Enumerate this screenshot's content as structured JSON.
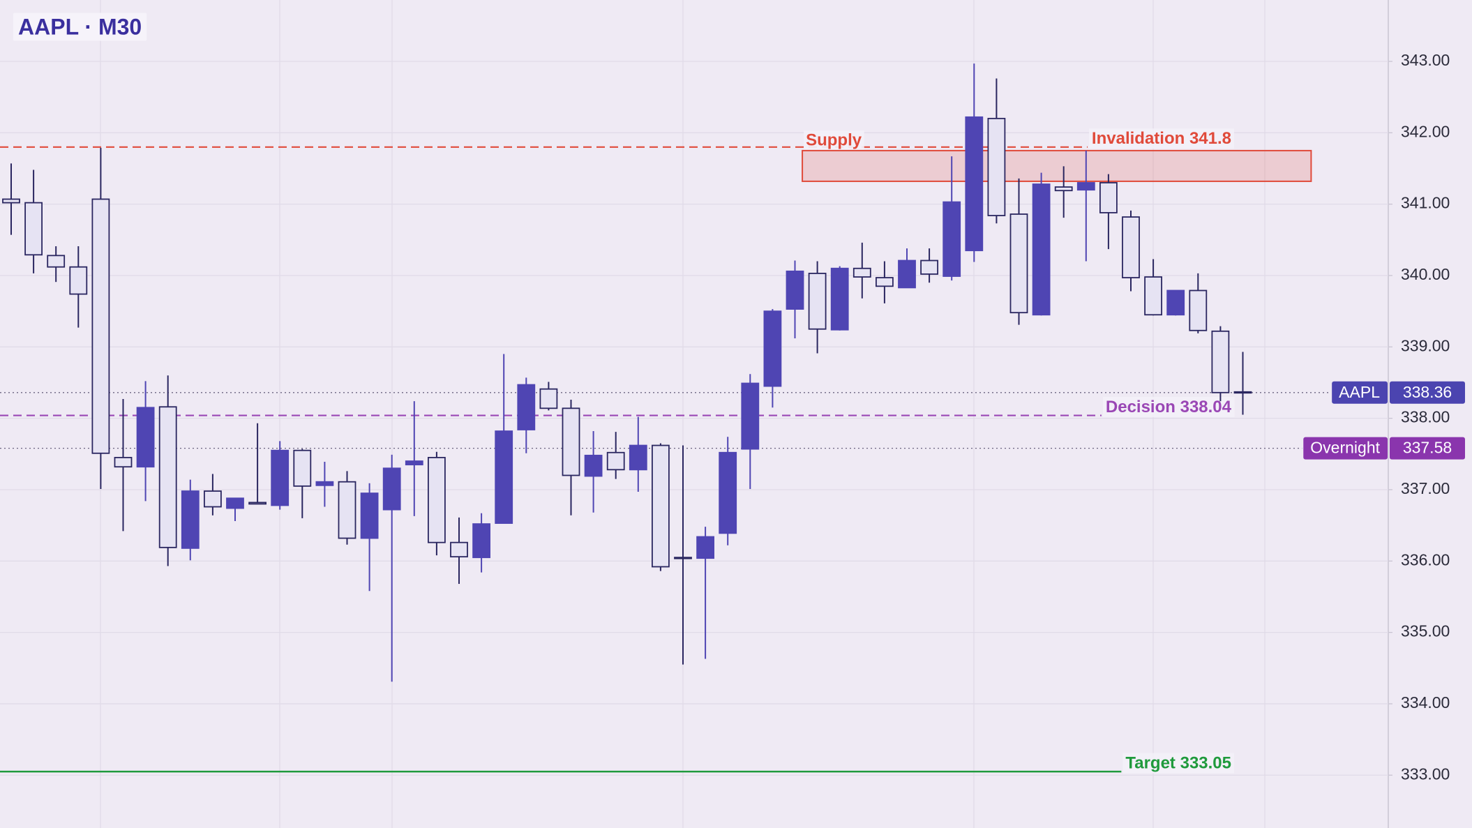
{
  "chart_data": {
    "type": "candlestick",
    "title": "AAPL · M30",
    "open": [
      341.07,
      341.02,
      340.28,
      340.12,
      341.07,
      337.45,
      337.32,
      338.16,
      336.18,
      336.98,
      336.74,
      336.82,
      336.78,
      337.55,
      337.06,
      337.11,
      336.32,
      336.72,
      337.35,
      337.45,
      336.26,
      336.05,
      336.53,
      337.84,
      338.41,
      338.14,
      337.19,
      337.52,
      337.28,
      337.62,
      336.05,
      336.04,
      336.39,
      337.57,
      338.45,
      339.53,
      340.03,
      339.24,
      340.1,
      339.97,
      339.83,
      340.21,
      339.99,
      340.35,
      342.2,
      340.86,
      339.45,
      341.24,
      341.2,
      341.3,
      340.82,
      339.98,
      339.45,
      339.79,
      339.22,
      338.37
    ],
    "high": [
      341.57,
      341.48,
      340.41,
      340.41,
      341.79,
      338.27,
      338.52,
      338.6,
      337.14,
      337.22,
      336.88,
      337.93,
      337.68,
      337.57,
      337.39,
      337.26,
      337.09,
      337.49,
      338.24,
      337.53,
      336.61,
      336.67,
      338.9,
      338.57,
      338.51,
      338.26,
      337.82,
      337.81,
      338.02,
      337.65,
      337.62,
      336.48,
      337.74,
      338.62,
      339.53,
      340.21,
      340.2,
      340.13,
      340.46,
      340.2,
      340.38,
      340.38,
      341.67,
      342.97,
      342.76,
      341.36,
      341.44,
      341.53,
      341.75,
      341.42,
      340.91,
      340.23,
      339.79,
      340.03,
      339.29,
      338.93
    ],
    "low": [
      340.57,
      340.03,
      339.91,
      339.27,
      337.01,
      336.42,
      336.84,
      335.93,
      336.01,
      336.64,
      336.56,
      336.8,
      336.72,
      336.6,
      336.76,
      336.23,
      335.58,
      334.31,
      336.63,
      336.08,
      335.68,
      335.84,
      336.53,
      337.51,
      338.11,
      336.64,
      336.68,
      337.15,
      336.97,
      335.86,
      334.55,
      334.63,
      336.22,
      337.01,
      338.15,
      339.12,
      338.91,
      339.23,
      339.68,
      339.61,
      339.83,
      339.9,
      339.93,
      340.19,
      340.73,
      339.31,
      339.44,
      340.81,
      340.2,
      340.37,
      339.78,
      339.44,
      339.44,
      339.19,
      338.24,
      338.05
    ],
    "close": [
      341.02,
      340.29,
      340.12,
      339.74,
      337.51,
      337.32,
      338.15,
      336.19,
      336.98,
      336.76,
      336.88,
      336.8,
      337.55,
      337.05,
      337.11,
      336.32,
      336.95,
      337.3,
      337.4,
      336.26,
      336.06,
      336.52,
      337.82,
      338.47,
      338.14,
      337.2,
      337.48,
      337.28,
      337.62,
      335.92,
      336.04,
      336.34,
      337.52,
      338.49,
      339.5,
      340.06,
      339.25,
      340.1,
      339.98,
      339.85,
      340.21,
      340.02,
      341.03,
      342.22,
      340.84,
      339.48,
      341.28,
      341.19,
      341.3,
      340.88,
      339.97,
      339.45,
      339.79,
      339.23,
      338.36,
      338.36
    ],
    "up_color": "#4f45b3",
    "down_color": "#e6e3f3",
    "ylim": [
      332.26,
      343.86
    ],
    "yticks": [
      {
        "value": 333,
        "label": "333.00"
      },
      {
        "value": 334,
        "label": "334.00"
      },
      {
        "value": 335,
        "label": "335.00"
      },
      {
        "value": 336,
        "label": "336.00"
      },
      {
        "value": 337,
        "label": "337.00"
      },
      {
        "value": 338,
        "label": "338.00"
      },
      {
        "value": 339,
        "label": "339.00"
      },
      {
        "value": 340,
        "label": "340.00"
      },
      {
        "value": 341,
        "label": "341.00"
      },
      {
        "value": 342,
        "label": "342.00"
      },
      {
        "value": 343,
        "label": "343.00"
      }
    ],
    "grid": true,
    "zone": {
      "label": "Supply",
      "top": 341.75,
      "bottom": 341.32,
      "color": "#e04a3a"
    },
    "levels": [
      {
        "label": "Invalidation 341.8",
        "value": 341.8,
        "color": "#e04a3a",
        "style": "dashed"
      },
      {
        "label": "Decision 338.04",
        "value": 338.04,
        "color": "#9a47b5",
        "style": "dashed"
      },
      {
        "label": "Target 333.05",
        "value": 333.05,
        "color": "#1f9a3c",
        "style": "solid"
      }
    ],
    "badges": [
      {
        "label": "AAPL",
        "value": 338.36,
        "value_label": "338.36",
        "color": "#4b44b0"
      },
      {
        "label": "Overnight",
        "value": 337.58,
        "value_label": "337.58",
        "color": "#8a35ad"
      }
    ]
  }
}
